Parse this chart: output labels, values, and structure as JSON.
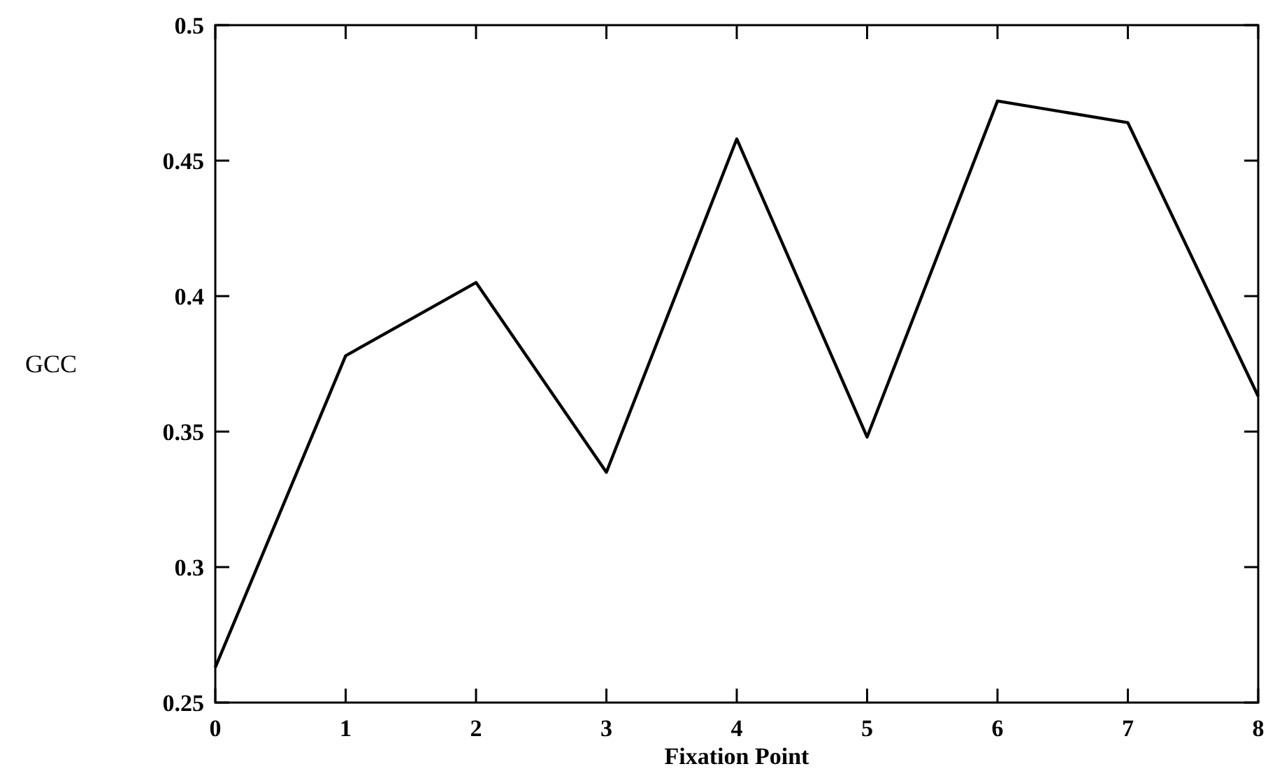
{
  "chart_data": {
    "type": "line",
    "xlabel": "Fixation Point",
    "ylabel": "GCC",
    "x": [
      0,
      1,
      2,
      3,
      4,
      5,
      6,
      7,
      8
    ],
    "series": [
      {
        "color": "#000000",
        "values": [
          0.263,
          0.378,
          0.405,
          0.335,
          0.458,
          0.348,
          0.472,
          0.464,
          0.363
        ]
      }
    ],
    "xlim": [
      0,
      8
    ],
    "xticks": [
      0,
      1,
      2,
      3,
      4,
      5,
      6,
      7,
      8
    ],
    "ylim": [
      0.25,
      0.5
    ],
    "yticks": [
      0.25,
      0.3,
      0.35,
      0.4,
      0.45,
      0.5
    ],
    "grid": false,
    "marker": "none",
    "line_style": "solid"
  }
}
